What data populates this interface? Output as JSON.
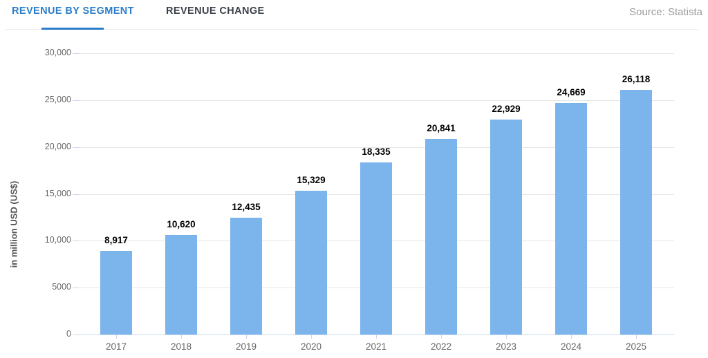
{
  "header": {
    "tabs": [
      {
        "label": "REVENUE BY SEGMENT",
        "active": true
      },
      {
        "label": "REVENUE CHANGE",
        "active": false
      }
    ],
    "source": "Source: Statista"
  },
  "chart_data": {
    "type": "bar",
    "title": "",
    "xlabel": "",
    "ylabel": "in million USD (US$)",
    "categories": [
      "2017",
      "2018",
      "2019",
      "2020",
      "2021",
      "2022",
      "2023",
      "2024",
      "2025"
    ],
    "values": [
      8917,
      10620,
      12435,
      15329,
      18335,
      20841,
      22929,
      24669,
      26118
    ],
    "value_labels": [
      "8,917",
      "10,620",
      "12,435",
      "15,329",
      "18,335",
      "20,841",
      "22,929",
      "24,669",
      "26,118"
    ],
    "ylim": [
      0,
      30000
    ],
    "ytick_step": 5000,
    "ytick_labels": [
      "0",
      "5000",
      "10,000",
      "15,000",
      "20,000",
      "25,000",
      "30,000"
    ],
    "grid": true,
    "legend": "none",
    "colors": {
      "bar": "#7cb5ec",
      "grid": "#e6e6e6",
      "axis": "#ccd6eb",
      "tick_label": "#666666",
      "data_label": "#000000",
      "active_tab": "#2a7dc9",
      "inactive_tab": "#3b4149",
      "source_text": "#9b9b9b"
    }
  }
}
